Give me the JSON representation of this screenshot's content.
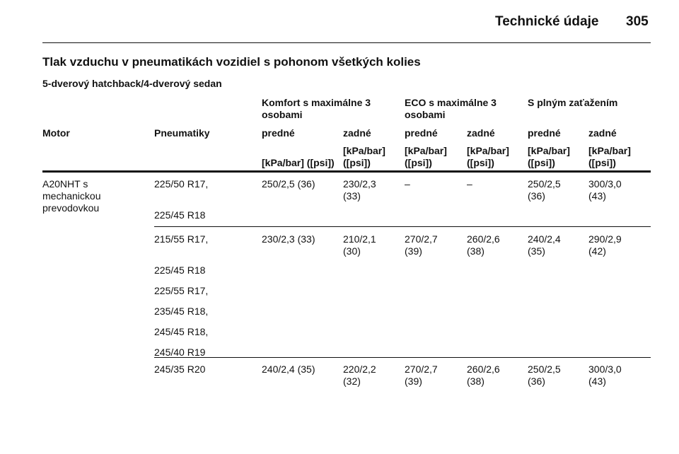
{
  "header": {
    "title": "Technické údaje",
    "page": "305"
  },
  "title": "Tlak vzduchu v pneumatikách vozidiel s pohonom všetkých kolies",
  "subtitle": "5-dverový hatchback/4-dverový sedan",
  "table": {
    "group_headers": [
      "Komfort s maximálne 3 osobami",
      "ECO s maximálne 3 osobami",
      "S plným zaťažením"
    ],
    "columns": [
      "Motor",
      "Pneumatiky",
      "predné",
      "zadné",
      "predné",
      "zadné",
      "predné",
      "zadné"
    ],
    "units": [
      "[kPa/bar] ([psi])",
      "[kPa/bar] ([psi])",
      "[kPa/bar] ([psi])",
      "[kPa/bar] ([psi])",
      "[kPa/bar] ([psi])",
      "[kPa/bar] ([psi])"
    ],
    "rows": [
      {
        "motor": "A20NHT s mechanickou prevodovkou",
        "tires": [
          "225/50 R17,",
          "225/45 R18"
        ],
        "values": [
          "250/2,5 (36)",
          "230/2,3 (33)",
          "–",
          "–",
          "250/2,5 (36)",
          "300/3,0 (43)"
        ]
      },
      {
        "motor": null,
        "tires": [
          "215/55 R17,",
          "225/45 R18",
          "225/55 R17,",
          "235/45 R18,",
          "245/45 R18,",
          "245/40 R19"
        ],
        "values": [
          "230/2,3 (33)",
          "210/2,1 (30)",
          "270/2,7 (39)",
          "260/2,6 (38)",
          "240/2,4 (35)",
          "290/2,9 (42)"
        ]
      },
      {
        "motor": null,
        "tires": [
          "245/35 R20"
        ],
        "values": [
          "240/2,4 (35)",
          "220/2,2 (32)",
          "270/2,7 (39)",
          "260/2,6 (38)",
          "250/2,5 (36)",
          "300/3,0 (43)"
        ]
      }
    ]
  }
}
